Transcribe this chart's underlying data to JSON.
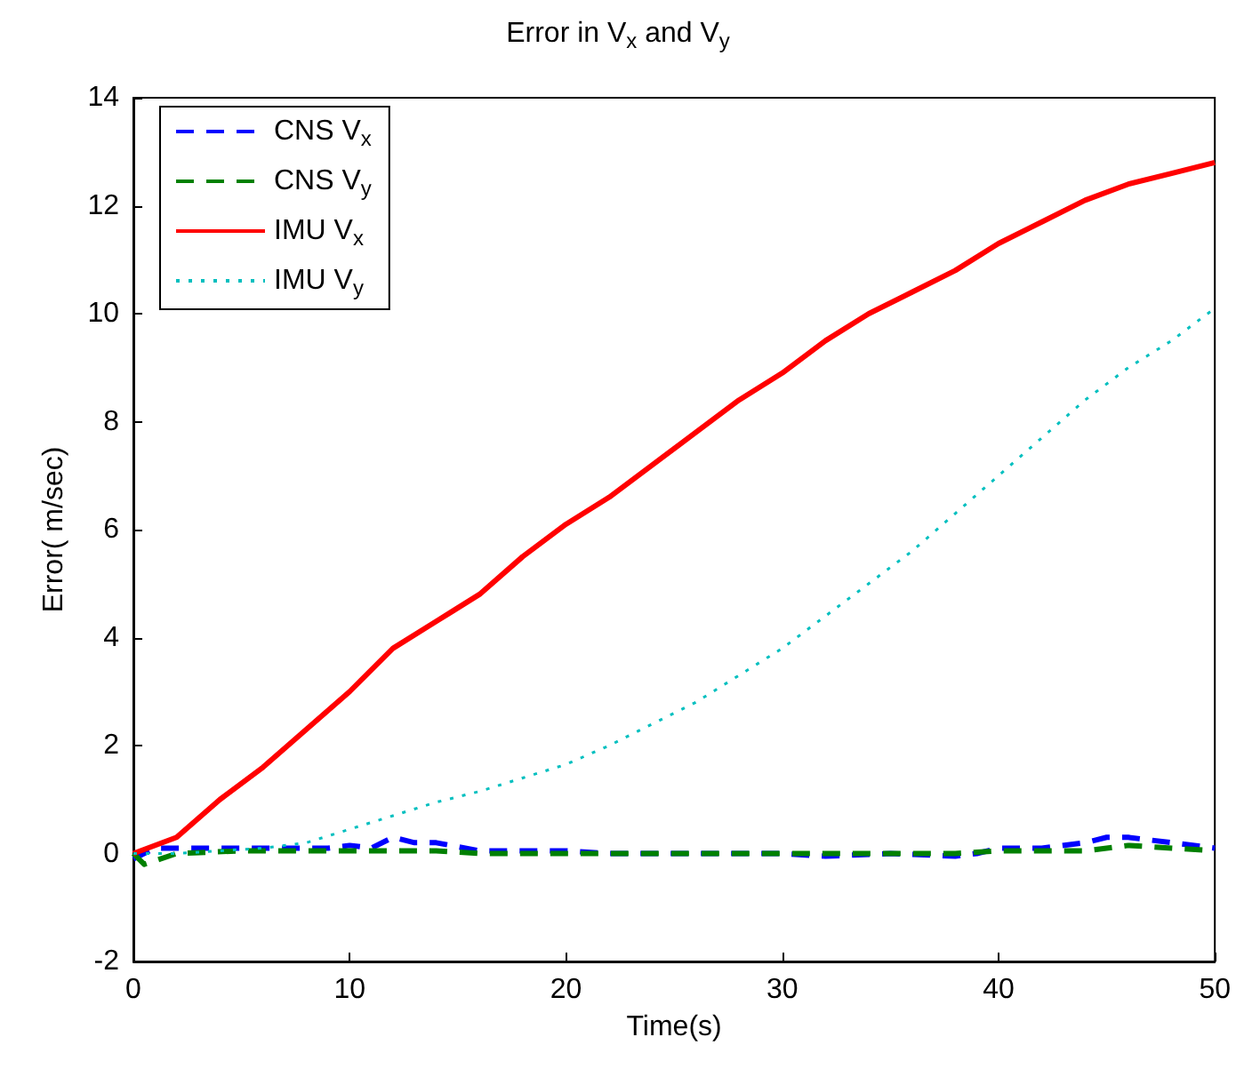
{
  "chart_data": {
    "type": "line",
    "title": "Error in V$_{x}$ and V$_{y}$",
    "xlabel": "Time(s)",
    "ylabel": "Error( m/sec)",
    "xlim": [
      0,
      50
    ],
    "xticks": [
      0,
      10,
      20,
      30,
      40,
      50
    ],
    "ylim": [
      -2,
      14
    ],
    "yticks": [
      -2,
      0,
      2,
      4,
      6,
      8,
      10,
      12,
      14
    ],
    "grid": false,
    "legend": "top left",
    "marker": "none",
    "series": [
      {
        "name": "CNS V$_{x}$",
        "color": "#0000ff",
        "line_style": "dashed",
        "x": [
          0,
          1,
          3,
          5,
          7,
          9,
          10,
          11,
          12,
          13,
          14,
          16,
          18,
          20,
          22,
          25,
          28,
          30,
          32,
          35,
          38,
          39,
          40,
          42,
          44,
          45,
          46,
          47,
          48,
          50
        ],
        "values": [
          -0.1,
          0.1,
          0.1,
          0.1,
          0.1,
          0.1,
          0.15,
          0.1,
          0.3,
          0.2,
          0.2,
          0.05,
          0.05,
          0.05,
          0.0,
          0.0,
          0.0,
          0.0,
          -0.05,
          0.0,
          -0.05,
          0.0,
          0.1,
          0.1,
          0.2,
          0.3,
          0.3,
          0.25,
          0.2,
          0.1
        ]
      },
      {
        "name": "CNS V$_{y}$",
        "color": "#008000",
        "line_style": "dashed",
        "x": [
          0,
          0.5,
          2,
          5,
          8,
          10,
          12,
          14,
          16,
          20,
          25,
          30,
          35,
          38,
          40,
          42,
          44,
          46,
          48,
          50
        ],
        "values": [
          0,
          -0.2,
          0.0,
          0.05,
          0.05,
          0.05,
          0.05,
          0.05,
          0.0,
          0.0,
          0.0,
          0.0,
          0.0,
          0.0,
          0.05,
          0.05,
          0.05,
          0.15,
          0.1,
          0.05
        ]
      },
      {
        "name": "IMU V$_{x}$",
        "color": "#ff0000",
        "line_style": "solid",
        "x": [
          0,
          2,
          4,
          6,
          8,
          10,
          12,
          14,
          16,
          18,
          20,
          22,
          24,
          26,
          28,
          30,
          32,
          34,
          36,
          38,
          40,
          42,
          44,
          46,
          48,
          50
        ],
        "values": [
          0,
          0.3,
          1.0,
          1.6,
          2.3,
          3.0,
          3.8,
          4.3,
          4.8,
          5.5,
          6.1,
          6.6,
          7.2,
          7.8,
          8.4,
          8.9,
          9.5,
          10.0,
          10.4,
          10.8,
          11.3,
          11.7,
          12.1,
          12.4,
          12.6,
          12.8
        ]
      },
      {
        "name": "IMU V$_{y}$",
        "color": "#00bfbf",
        "line_style": "dotted",
        "x": [
          0,
          2,
          4,
          6,
          8,
          10,
          12,
          14,
          16,
          18,
          20,
          22,
          24,
          26,
          28,
          30,
          32,
          34,
          36,
          38,
          40,
          42,
          44,
          46,
          48,
          50
        ],
        "values": [
          0,
          0,
          0.05,
          0.1,
          0.2,
          0.45,
          0.7,
          0.95,
          1.15,
          1.4,
          1.65,
          2.0,
          2.4,
          2.8,
          3.3,
          3.8,
          4.4,
          5.0,
          5.6,
          6.3,
          7.0,
          7.7,
          8.4,
          9.0,
          9.5,
          10.1
        ]
      }
    ]
  }
}
